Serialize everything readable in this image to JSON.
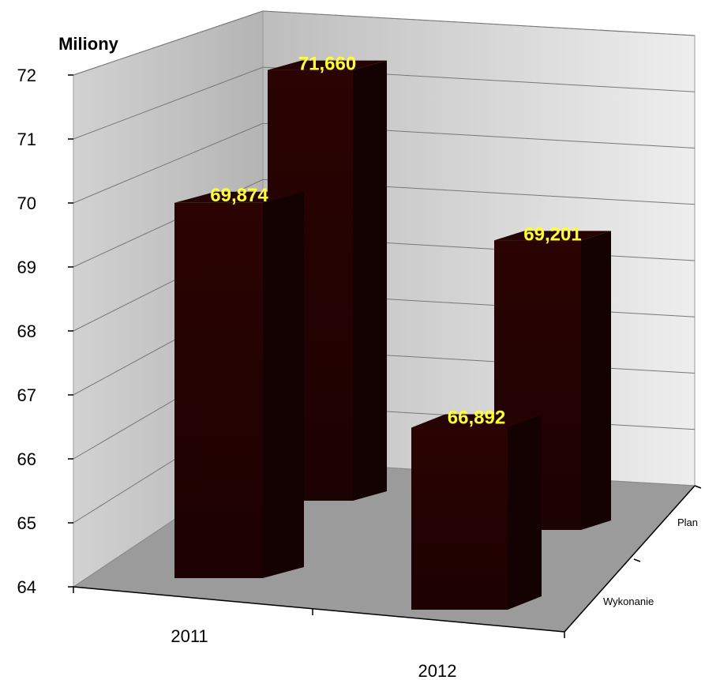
{
  "chart_data": {
    "type": "bar",
    "unit_label": "Miliony",
    "categories": [
      "2011",
      "2012"
    ],
    "series": [
      {
        "name": "Wykonanie",
        "values": [
          69.874,
          66.892
        ],
        "labels": [
          "69,874",
          "66,892"
        ]
      },
      {
        "name": "Plan",
        "values": [
          71.66,
          69.201
        ],
        "labels": [
          "71,660",
          "69,201"
        ]
      }
    ],
    "ylim": [
      64,
      72
    ],
    "yticks": [
      "64",
      "65",
      "66",
      "67",
      "68",
      "69",
      "70",
      "71",
      "72"
    ],
    "grid": true,
    "colors": {
      "bar": "#1e0201",
      "bar_front_light": "#2c0403",
      "label": "#ffff33",
      "wall": "#c8c8c8",
      "floor": "#9a9a9a"
    }
  }
}
